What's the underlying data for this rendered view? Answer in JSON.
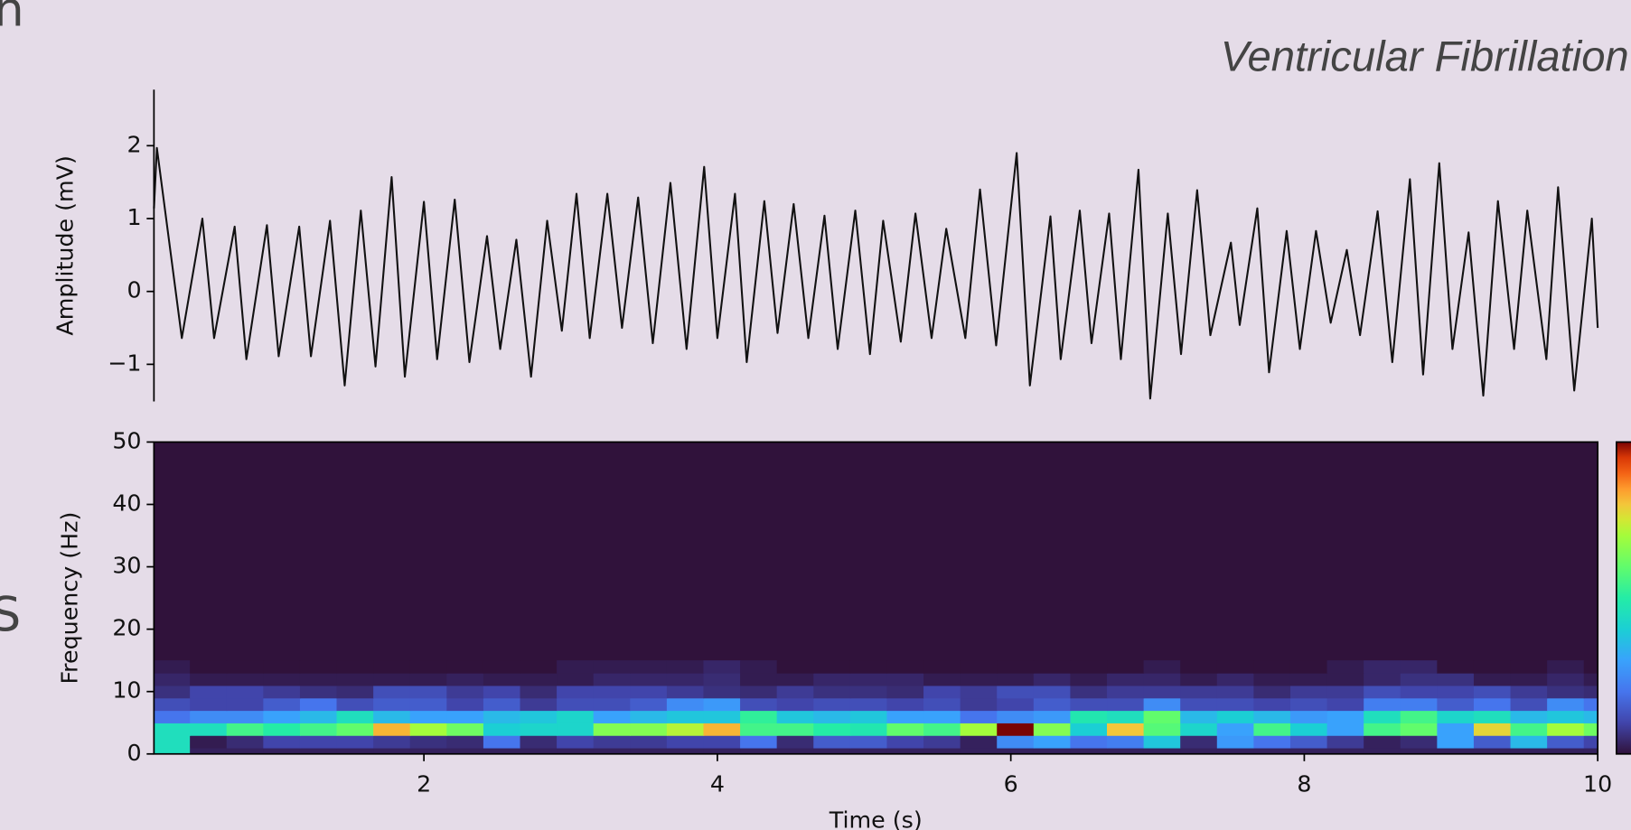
{
  "fragments": [
    "n",
    "S"
  ],
  "chart_data": [
    {
      "type": "line",
      "title": "Ventricular Fibrillation",
      "ylabel": "Amplitude (mV)",
      "color": "#111111",
      "x": [
        0.16,
        0.18,
        0.35,
        0.49,
        0.57,
        0.71,
        0.79,
        0.93,
        1.01,
        1.15,
        1.23,
        1.36,
        1.46,
        1.57,
        1.67,
        1.78,
        1.87,
        2.0,
        2.09,
        2.21,
        2.31,
        2.43,
        2.52,
        2.63,
        2.73,
        2.84,
        2.94,
        3.04,
        3.13,
        3.25,
        3.35,
        3.46,
        3.56,
        3.68,
        3.79,
        3.91,
        4.0,
        4.12,
        4.2,
        4.32,
        4.41,
        4.52,
        4.62,
        4.73,
        4.82,
        4.94,
        5.04,
        5.13,
        5.25,
        5.35,
        5.46,
        5.56,
        5.69,
        5.79,
        5.9,
        6.04,
        6.13,
        6.27,
        6.34,
        6.47,
        6.55,
        6.67,
        6.75,
        6.87,
        6.95,
        7.07,
        7.16,
        7.27,
        7.36,
        7.5,
        7.56,
        7.68,
        7.76,
        7.88,
        7.97,
        8.08,
        8.18,
        8.29,
        8.38,
        8.5,
        8.6,
        8.72,
        8.81,
        8.92,
        9.01,
        9.12,
        9.22,
        9.32,
        9.43,
        9.52,
        9.65,
        9.73,
        9.84,
        9.96,
        10.0
      ],
      "values": [
        1.14,
        1.97,
        -0.64,
        1.0,
        -0.64,
        0.89,
        -0.93,
        0.91,
        -0.89,
        0.89,
        -0.89,
        0.97,
        -1.29,
        1.11,
        -1.03,
        1.57,
        -1.17,
        1.23,
        -0.93,
        1.26,
        -0.97,
        0.76,
        -0.79,
        0.71,
        -1.17,
        0.97,
        -0.54,
        1.34,
        -0.64,
        1.34,
        -0.5,
        1.29,
        -0.71,
        1.49,
        -0.79,
        1.71,
        -0.64,
        1.34,
        -0.97,
        1.24,
        -0.57,
        1.2,
        -0.64,
        1.04,
        -0.79,
        1.11,
        -0.86,
        0.97,
        -0.69,
        1.07,
        -0.64,
        0.86,
        -0.64,
        1.4,
        -0.74,
        1.9,
        -1.29,
        1.03,
        -0.93,
        1.11,
        -0.71,
        1.07,
        -0.93,
        1.67,
        -1.47,
        1.07,
        -0.86,
        1.39,
        -0.6,
        0.67,
        -0.46,
        1.14,
        -1.11,
        0.83,
        -0.79,
        0.83,
        -0.43,
        0.57,
        -0.6,
        1.1,
        -0.97,
        1.54,
        -1.14,
        1.76,
        -0.79,
        0.81,
        -1.43,
        1.24,
        -0.79,
        1.11,
        -0.93,
        1.43,
        -1.36,
        1.0,
        -0.5
      ],
      "xlim": [
        0.16,
        10
      ],
      "ylim": [
        -1.51,
        2.77
      ],
      "yticks": [
        {
          "value": -1,
          "label": "−1"
        },
        0,
        1,
        2
      ]
    },
    {
      "type": "heatmap",
      "ylabel": "Frequency (Hz)",
      "xlabel": "Time (s)",
      "colormap": "turbo",
      "clim": [
        0,
        1
      ],
      "x": [
        0.28,
        0.53,
        0.78,
        1.03,
        1.28,
        1.53,
        1.78,
        2.03,
        2.28,
        2.53,
        2.78,
        3.03,
        3.28,
        3.53,
        3.78,
        4.03,
        4.28,
        4.53,
        4.78,
        5.03,
        5.28,
        5.53,
        5.78,
        6.03,
        6.28,
        6.53,
        6.78,
        7.03,
        7.28,
        7.53,
        7.78,
        8.03,
        8.28,
        8.53,
        8.78,
        9.03,
        9.28,
        9.53,
        9.78,
        10.03
      ],
      "y": [
        0,
        2,
        4,
        6,
        8,
        10,
        12,
        14
      ],
      "z": [
        [
          0.45,
          0.03,
          0.03,
          0.03,
          0.03,
          0.03,
          0.03,
          0.03,
          0.03,
          0.03,
          0.03,
          0.03,
          0.03,
          0.03,
          0.03,
          0.03,
          0.03,
          0.03,
          0.03,
          0.03,
          0.03,
          0.03,
          0.03,
          0.03,
          0.03,
          0.03,
          0.03,
          0.03,
          0.03,
          0.03,
          0.03,
          0.03,
          0.03,
          0.03,
          0.03,
          0.03,
          0.03,
          0.03,
          0.03,
          0.03
        ],
        [
          0.45,
          0.02,
          0.05,
          0.1,
          0.1,
          0.1,
          0.08,
          0.06,
          0.05,
          0.2,
          0.05,
          0.1,
          0.08,
          0.08,
          0.1,
          0.1,
          0.2,
          0.05,
          0.15,
          0.15,
          0.1,
          0.08,
          0.03,
          0.25,
          0.3,
          0.2,
          0.22,
          0.38,
          0.05,
          0.28,
          0.2,
          0.15,
          0.08,
          0.03,
          0.05,
          0.3,
          0.15,
          0.35,
          0.15,
          0.1
        ],
        [
          0.45,
          0.45,
          0.55,
          0.5,
          0.55,
          0.6,
          0.82,
          0.7,
          0.62,
          0.4,
          0.42,
          0.42,
          0.65,
          0.65,
          0.72,
          0.82,
          0.55,
          0.55,
          0.5,
          0.48,
          0.6,
          0.55,
          0.7,
          1.0,
          0.65,
          0.4,
          0.8,
          0.58,
          0.42,
          0.3,
          0.55,
          0.4,
          0.3,
          0.55,
          0.6,
          0.3,
          0.78,
          0.55,
          0.7,
          0.62
        ],
        [
          0.2,
          0.25,
          0.25,
          0.3,
          0.35,
          0.45,
          0.35,
          0.3,
          0.3,
          0.35,
          0.38,
          0.42,
          0.3,
          0.35,
          0.38,
          0.38,
          0.52,
          0.38,
          0.35,
          0.38,
          0.3,
          0.3,
          0.2,
          0.25,
          0.28,
          0.48,
          0.45,
          0.6,
          0.35,
          0.4,
          0.35,
          0.28,
          0.3,
          0.45,
          0.55,
          0.42,
          0.45,
          0.35,
          0.38,
          0.35
        ],
        [
          0.12,
          0.1,
          0.1,
          0.15,
          0.2,
          0.12,
          0.15,
          0.15,
          0.1,
          0.15,
          0.08,
          0.12,
          0.12,
          0.15,
          0.25,
          0.28,
          0.12,
          0.1,
          0.12,
          0.12,
          0.1,
          0.12,
          0.08,
          0.1,
          0.15,
          0.12,
          0.12,
          0.25,
          0.12,
          0.12,
          0.1,
          0.12,
          0.1,
          0.22,
          0.22,
          0.15,
          0.2,
          0.12,
          0.25,
          0.2
        ],
        [
          0.06,
          0.1,
          0.1,
          0.08,
          0.06,
          0.05,
          0.12,
          0.12,
          0.08,
          0.1,
          0.05,
          0.1,
          0.1,
          0.1,
          0.08,
          0.06,
          0.05,
          0.08,
          0.06,
          0.06,
          0.05,
          0.1,
          0.08,
          0.12,
          0.12,
          0.06,
          0.08,
          0.08,
          0.08,
          0.08,
          0.05,
          0.08,
          0.08,
          0.12,
          0.1,
          0.1,
          0.12,
          0.08,
          0.06,
          0.05
        ],
        [
          0.04,
          0.02,
          0.02,
          0.02,
          0.02,
          0.02,
          0.02,
          0.02,
          0.03,
          0.02,
          0.02,
          0.02,
          0.04,
          0.04,
          0.04,
          0.05,
          0.02,
          0.02,
          0.04,
          0.04,
          0.04,
          0.02,
          0.02,
          0.02,
          0.04,
          0.02,
          0.04,
          0.04,
          0.02,
          0.04,
          0.02,
          0.02,
          0.02,
          0.04,
          0.06,
          0.06,
          0.02,
          0.02,
          0.04,
          0.02
        ],
        [
          0.02,
          0,
          0,
          0,
          0,
          0,
          0,
          0,
          0,
          0,
          0,
          0.02,
          0.02,
          0.02,
          0.02,
          0.04,
          0.02,
          0,
          0,
          0,
          0,
          0,
          0,
          0,
          0,
          0,
          0,
          0.02,
          0,
          0,
          0,
          0,
          0.02,
          0.04,
          0.04,
          0,
          0,
          0,
          0.02,
          0
        ]
      ],
      "xlim": [
        0.16,
        10
      ],
      "ylim": [
        0,
        50
      ],
      "xticks": [
        2,
        4,
        6,
        8,
        10
      ],
      "yticks": [
        0,
        10,
        20,
        30,
        40,
        50
      ]
    }
  ]
}
